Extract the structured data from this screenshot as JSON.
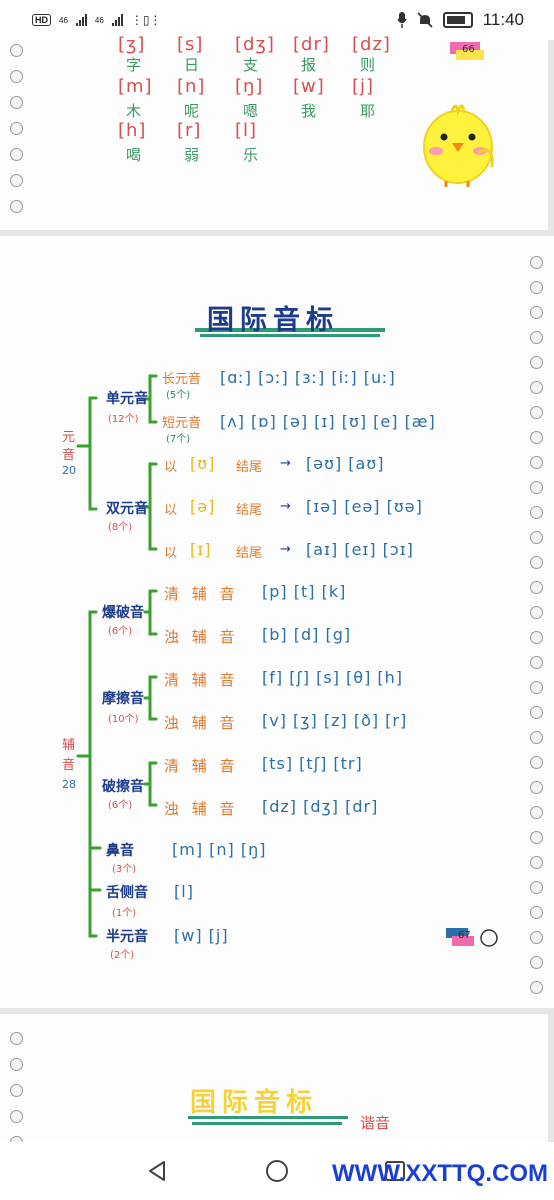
{
  "status_bar": {
    "left_tags": [
      "HD",
      "46",
      "46"
    ],
    "time": "11:40"
  },
  "page1": {
    "row0": [
      "[ʒ]",
      "[s]",
      "[dʒ]",
      "[dr]",
      "[dz]"
    ],
    "row0_han": [
      "字",
      "日",
      "支",
      "报",
      "则"
    ],
    "row1": [
      "[m]",
      "[n]",
      "[ŋ]",
      "[w]",
      "[j]"
    ],
    "row1_han": [
      "木",
      "呢",
      "嗯",
      "我",
      "耶"
    ],
    "row2": [
      "[h]",
      "[r]",
      "[l]"
    ],
    "row2_han": [
      "喝",
      "弱",
      "乐"
    ],
    "page_number": "66"
  },
  "page2": {
    "title": "国际音标",
    "vowel_group": {
      "label": [
        "元",
        "音"
      ],
      "count": "20"
    },
    "monophthong": {
      "label": "单元音",
      "count": "(12个)"
    },
    "long": {
      "label": "长元音",
      "count": "(5个)",
      "symbols": "[ɑː] [ɔː] [ɜː] [iː] [uː]"
    },
    "short": {
      "label": "短元音",
      "count": "(7个)",
      "symbols": "[ʌ] [ɒ] [ə] [ɪ] [ʊ] [e] [æ]"
    },
    "diphthong": {
      "label": "双元音",
      "count": "(8个)"
    },
    "dip_rows": [
      {
        "prefix": "以",
        "key": "[ʊ]",
        "suffix": "结尾",
        "arrow": "→",
        "symbols": "[əʊ] [aʊ]"
      },
      {
        "prefix": "以",
        "key": "[ə]",
        "suffix": "结尾",
        "arrow": "→",
        "symbols": "[ɪə] [eə] [ʊə]"
      },
      {
        "prefix": "以",
        "key": "[ɪ]",
        "suffix": "结尾",
        "arrow": "→",
        "symbols": "[aɪ] [eɪ] [ɔɪ]"
      }
    ],
    "consonant_group": {
      "label": [
        "辅",
        "音"
      ],
      "count": "28"
    },
    "plosive": {
      "label": "爆破音",
      "count": "(6个)"
    },
    "fricative": {
      "label": "摩擦音",
      "count": "(10个)"
    },
    "affricate": {
      "label": "破擦音",
      "count": "(6个)"
    },
    "voiceless": "清 辅 音",
    "voiced": "浊 辅 音",
    "plosive_vl": "[p] [t] [k]",
    "plosive_vd": "[b] [d] [g]",
    "fric_vl": "[f] [ʃ] [s] [θ] [h]",
    "fric_vd": "[v] [ʒ] [z] [ð] [r]",
    "affr_vl": "[ts] [tʃ] [tr]",
    "affr_vd": "[dz] [dʒ] [dr]",
    "nasal": {
      "label": "鼻音",
      "count": "(3个)",
      "symbols": "[m] [n] [ŋ]"
    },
    "lateral": {
      "label": "舌侧音",
      "count": "(1个)",
      "symbols": "[l]"
    },
    "semivowel": {
      "label": "半元音",
      "count": "(2个)",
      "symbols": "[w] [j]"
    },
    "page_number": "67"
  },
  "page3": {
    "title": "国际音标",
    "subtitle": "谐音"
  },
  "watermark": "WWW.XXTTQ.COM",
  "colors": {
    "green": "#2e8b57",
    "red": "#d94f4f",
    "navy": "#1e3c8c",
    "blue": "#2b6fa8",
    "orange": "#e07a2e",
    "yellow": "#e9b820"
  }
}
